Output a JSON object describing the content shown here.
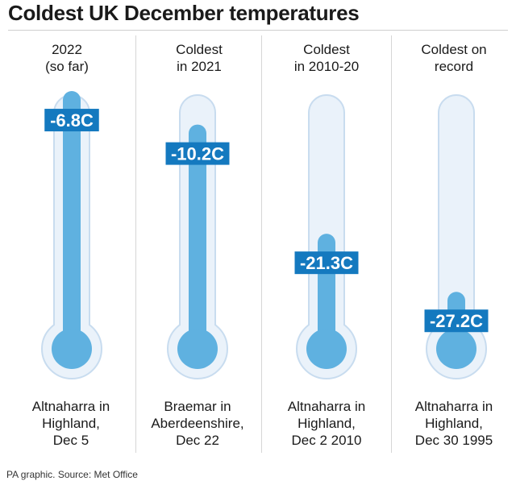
{
  "title": "Coldest UK December temperatures",
  "source": "PA graphic. Source: Met Office",
  "colors": {
    "tube_outline": "#c8dcef",
    "tube_fill": "#eaf2fa",
    "mercury": "#5fb1e0",
    "label_bg": "#1479bf",
    "label_text": "#ffffff"
  },
  "chart_data": {
    "type": "bar",
    "categories": [
      "2022\n(so far)",
      "Coldest\nin 2021",
      "Coldest\nin 2010-20",
      "Coldest on\nrecord"
    ],
    "values": [
      -6.8,
      -10.2,
      -21.3,
      -27.2
    ],
    "value_labels": [
      "-6.8C",
      "-10.2C",
      "-21.3C",
      "-27.2C"
    ],
    "locations": [
      "Altnaharra in\nHighland,\nDec 5",
      "Braemar in\nAberdeenshire,\nDec 22",
      "Altnaharra in\nHighland,\nDec 2 2010",
      "Altnaharra in\nHighland,\nDec 30 1995"
    ],
    "title": "Coldest UK December temperatures",
    "xlabel": "",
    "ylabel": "",
    "ylim": [
      -28,
      0
    ],
    "grid": false
  }
}
